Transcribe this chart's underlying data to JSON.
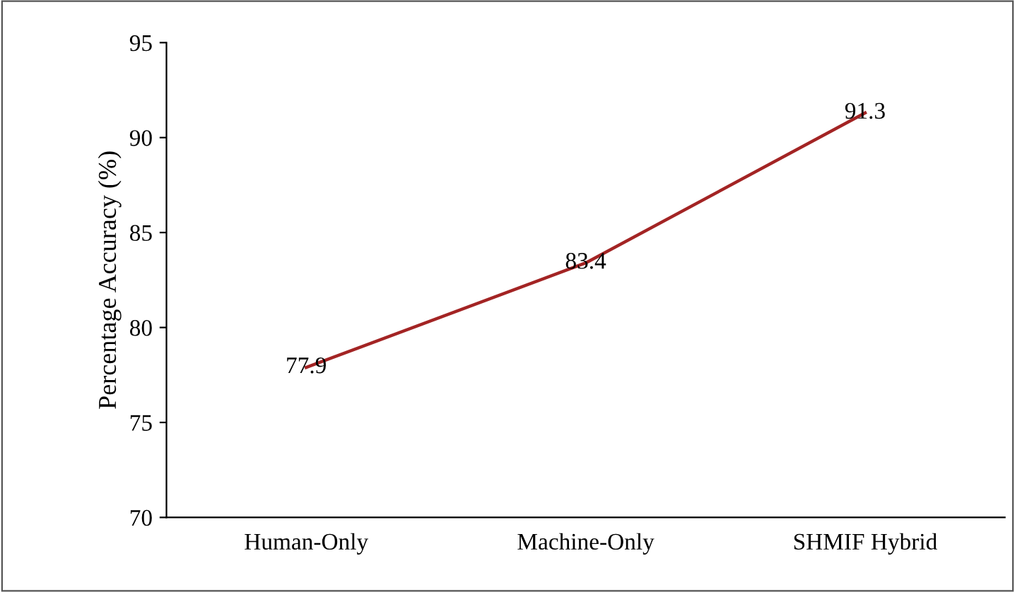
{
  "chart_data": {
    "type": "line",
    "ylabel": "Percentage Accuracy (%)",
    "categories": [
      "Human-Only",
      "Machine-Only",
      "SHMIF Hybrid"
    ],
    "series": [
      {
        "color": "#a32424",
        "values": [
          77.9,
          83.4,
          91.3
        ]
      }
    ],
    "ylim": [
      70,
      95
    ],
    "yticks": [
      70,
      75,
      80,
      85,
      90,
      95
    ],
    "data_labels": true,
    "grid": false,
    "legend": false,
    "marker": "none",
    "line_style": "solid"
  }
}
